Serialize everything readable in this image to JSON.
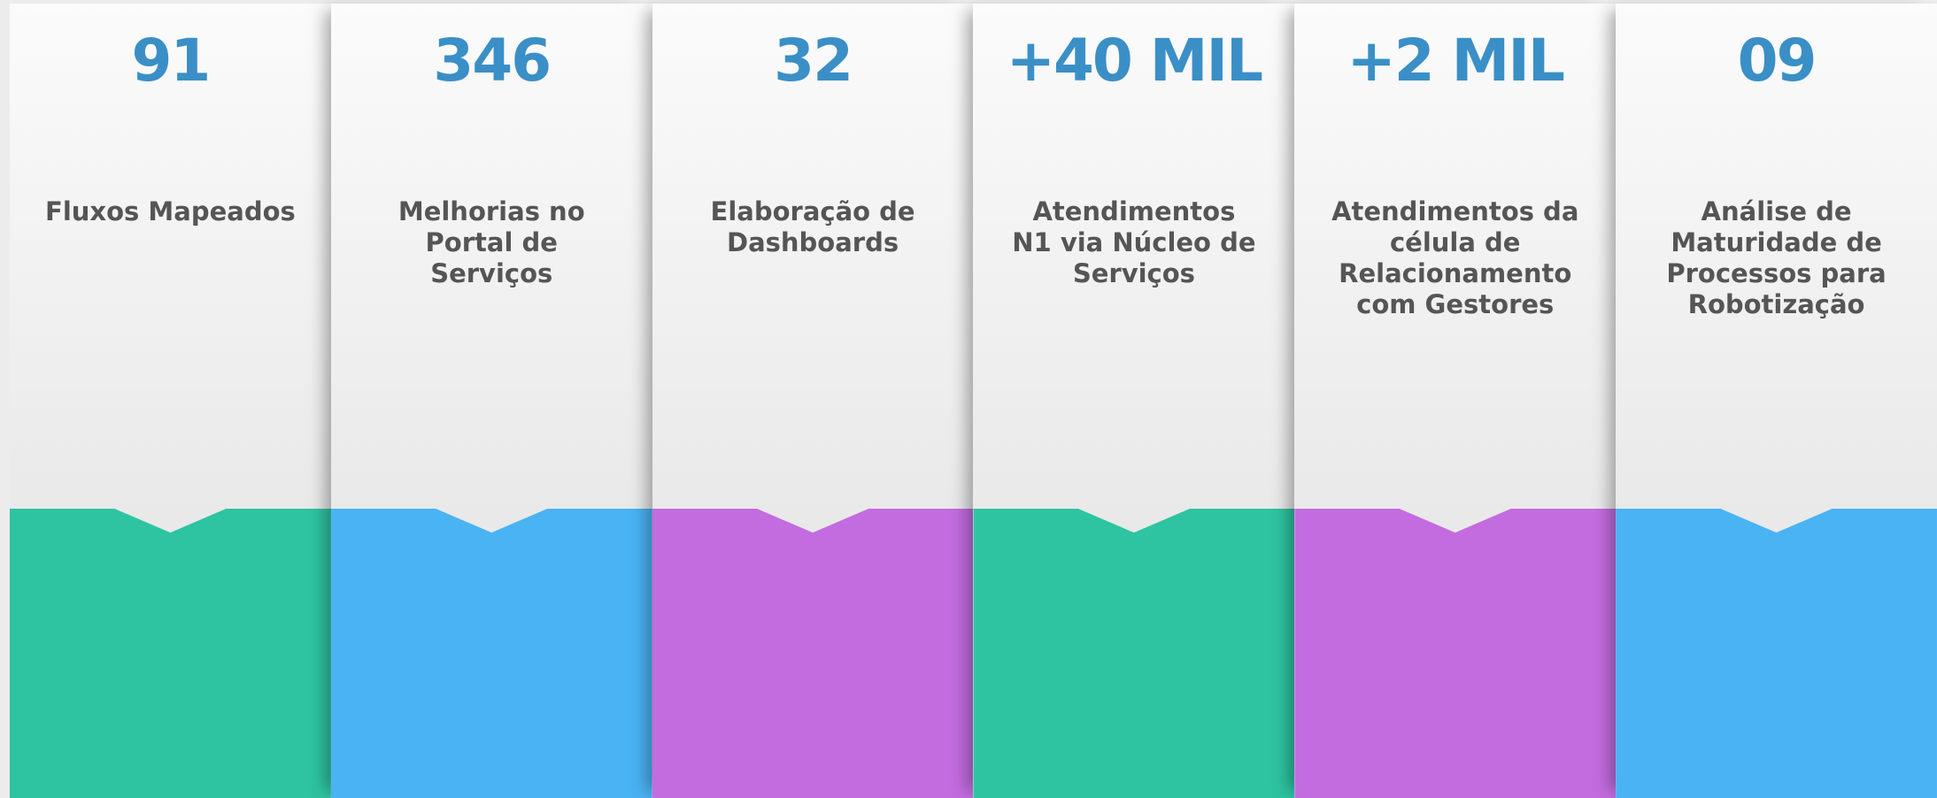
{
  "cards": [
    {
      "value": "91",
      "label": "Fluxos Mapeados",
      "color": "#2ec4a1"
    },
    {
      "value": "346",
      "label": "Melhorias no Portal de Serviços",
      "color": "#4ab3f4"
    },
    {
      "value": "32",
      "label": "Elaboração de Dashboards",
      "color": "#c36ce0"
    },
    {
      "value": "+40 MIL",
      "label": "Atendimentos N1 via Núcleo de Serviços",
      "color": "#2ec4a1"
    },
    {
      "value": "+2 MIL",
      "label": "Atendimentos da célula de Relacionamento com Gestores",
      "color": "#c36ce0"
    },
    {
      "value": "09",
      "label": "Análise de Maturidade de Processos para Robotização",
      "color": "#4ab3f4"
    }
  ]
}
